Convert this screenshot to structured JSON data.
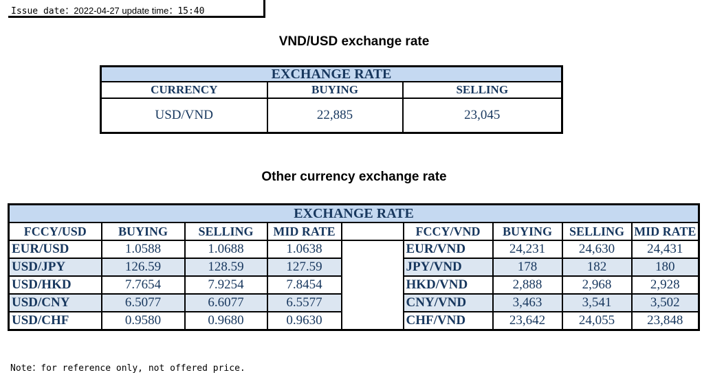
{
  "header": {
    "issue_label": "Issue date：",
    "issue_date": "2022-04-27",
    "update_label": " update time：",
    "update_time": "15:40"
  },
  "vnd_usd": {
    "heading": "VND/USD exchange rate",
    "table_title": "EXCHANGE RATE",
    "columns": [
      "CURRENCY",
      "BUYING",
      "SELLING"
    ],
    "row": {
      "currency": "USD/VND",
      "buying": "22,885",
      "selling": "23,045"
    }
  },
  "other": {
    "heading": "Other currency exchange rate",
    "table_title": "EXCHANGE  RATE",
    "left_columns": [
      "FCCY/USD",
      "BUYING",
      "SELLING",
      "MID RATE"
    ],
    "right_columns": [
      "FCCY/VND",
      "BUYING",
      "SELLING",
      "MID RATE"
    ],
    "left_rows": [
      {
        "pair": "EUR/USD",
        "buying": "1.0588",
        "selling": "1.0688",
        "mid": "1.0638"
      },
      {
        "pair": "USD/JPY",
        "buying": "126.59",
        "selling": "128.59",
        "mid": "127.59"
      },
      {
        "pair": "USD/HKD",
        "buying": "7.7654",
        "selling": "7.9254",
        "mid": "7.8454"
      },
      {
        "pair": "USD/CNY",
        "buying": "6.5077",
        "selling": "6.6077",
        "mid": "6.5577"
      },
      {
        "pair": "USD/CHF",
        "buying": "0.9580",
        "selling": "0.9680",
        "mid": "0.9630"
      }
    ],
    "right_rows": [
      {
        "pair": "EUR/VND",
        "buying": "24,231",
        "selling": "24,630",
        "mid": "24,431"
      },
      {
        "pair": "JPY/VND",
        "buying": "178",
        "selling": "182",
        "mid": "180"
      },
      {
        "pair": "HKD/VND",
        "buying": "2,888",
        "selling": "2,968",
        "mid": "2,928"
      },
      {
        "pair": "CNY/VND",
        "buying": "3,463",
        "selling": "3,541",
        "mid": "3,502"
      },
      {
        "pair": "CHF/VND",
        "buying": "23,642",
        "selling": "24,055",
        "mid": "23,848"
      }
    ]
  },
  "note": "Note：for reference only, not offered price."
}
